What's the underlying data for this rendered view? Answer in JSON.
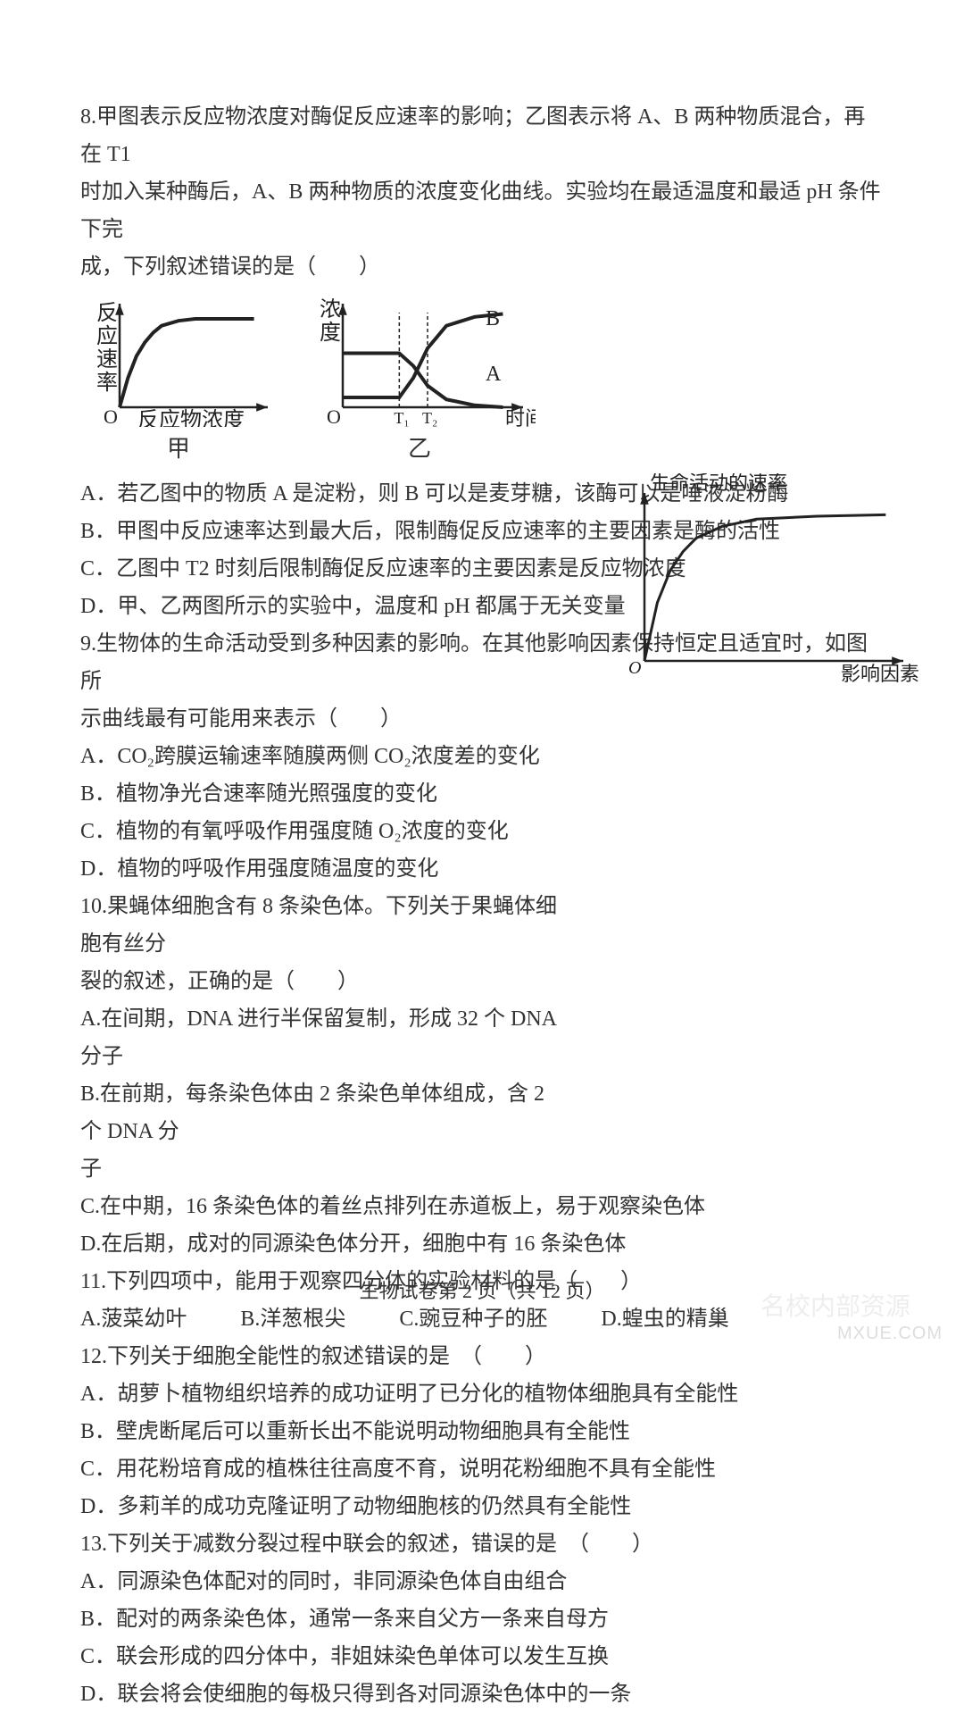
{
  "q8": {
    "stem_l1": "8.甲图表示反应物浓度对酶促反应速率的影响；乙图表示将 A、B 两种物质混合，再在 T1",
    "stem_l2": "时加入某种酶后，A、B 两种物质的浓度变化曲线。实验均在最适温度和最适 pH 条件下完",
    "stem_l3": "成，下列叙述错误的是（　　）",
    "optA": "A．若乙图中的物质 A 是淀粉，则 B 可以是麦芽糖，该酶可以是唾液淀粉酶",
    "optB": "B．甲图中反应速率达到最大后，限制酶促反应速率的主要因素是酶的活性",
    "optC": "C．乙图中 T2 时刻后限制酶促反应速率的主要因素是反应物浓度",
    "optD": "D．甲、乙两图所示的实验中，温度和 pH 都属于无关变量",
    "fig1": {
      "type": "line",
      "ylabel": "反应速率",
      "xlabel": "反应物浓度",
      "caption": "甲",
      "origin_label": "O",
      "stroke_color": "#222222",
      "stroke_width": 4,
      "bg": "#ffffff",
      "curve": {
        "x": [
          0,
          10,
          20,
          30,
          40,
          50,
          70,
          90,
          120,
          160
        ],
        "y": [
          0,
          30,
          52,
          66,
          76,
          83,
          88,
          90,
          90,
          90
        ],
        "ylim": [
          0,
          100
        ],
        "xlim": [
          0,
          170
        ]
      }
    },
    "fig2": {
      "type": "line",
      "ylabel": "浓度",
      "xlabel": "时间",
      "caption": "乙",
      "origin_label": "O",
      "stroke_color": "#222222",
      "stroke_width": 4,
      "bg": "#ffffff",
      "tick_T1": "T₁",
      "tick_T2": "T₂",
      "label_A": "A",
      "label_B": "B",
      "seriesA": {
        "x": [
          0,
          50,
          60,
          75,
          90,
          110,
          140,
          170
        ],
        "y": [
          55,
          55,
          55,
          42,
          22,
          8,
          2,
          0
        ],
        "xlim": [
          0,
          180
        ],
        "ylim": [
          0,
          100
        ]
      },
      "seriesB": {
        "x": [
          0,
          50,
          60,
          75,
          90,
          110,
          140,
          170
        ],
        "y": [
          10,
          10,
          10,
          30,
          60,
          83,
          92,
          95
        ],
        "xlim": [
          0,
          180
        ],
        "ylim": [
          0,
          100
        ]
      },
      "vline1_x": 60,
      "vline2_x": 90
    }
  },
  "q9": {
    "stem_l1": "9.生物体的生命活动受到多种因素的影响。在其他影响因素保持恒定且适宜时，如图所",
    "stem_l2": "示曲线最有可能用来表示（　　）",
    "optA": "A．CO₂跨膜运输速率随膜两侧 CO₂浓度差的变化",
    "optB": "B．植物净光合速率随光照强度的变化",
    "optC": "C．植物的有氧呼吸作用强度随 O₂浓度的变化",
    "optD": "D．植物的呼吸作用强度随温度的变化",
    "fig": {
      "type": "line",
      "ylabel": "生命活动的速率",
      "xlabel": "影响因素",
      "origin_label": "O",
      "stroke_color": "#222222",
      "stroke_width": 3,
      "curve": {
        "x": [
          0,
          15,
          30,
          45,
          60,
          90,
          130,
          200,
          280
        ],
        "y": [
          0,
          40,
          62,
          75,
          84,
          92,
          97,
          99,
          100
        ],
        "xlim": [
          0,
          290
        ],
        "ylim": [
          0,
          110
        ]
      }
    }
  },
  "q10": {
    "stem_l1": "10.果蝇体细胞含有 8 条染色体。下列关于果蝇体细胞有丝分",
    "stem_l2": "裂的叙述，正确的是（　　）",
    "optA": "A.在间期，DNA 进行半保留复制，形成 32 个 DNA 分子",
    "optB_l1": "B.在前期，每条染色体由 2 条染色单体组成，含 2 个 DNA 分",
    "optB_l2": "子",
    "optC": "C.在中期，16 条染色体的着丝点排列在赤道板上，易于观察染色体",
    "optD": "D.在后期，成对的同源染色体分开，细胞中有 16 条染色体"
  },
  "q11": {
    "stem": "11.下列四项中，能用于观察四分体的实验材料的是（　　）",
    "optA": "A.菠菜幼叶",
    "optB": "B.洋葱根尖",
    "optC": "C.豌豆种子的胚",
    "optD": "D.蝗虫的精巢"
  },
  "q12": {
    "stem": "12.下列关于细胞全能性的叙述错误的是　（　　）",
    "optA": "A．胡萝卜植物组织培养的成功证明了已分化的植物体细胞具有全能性",
    "optB": "B．壁虎断尾后可以重新长出不能说明动物细胞具有全能性",
    "optC": "C．用花粉培育成的植株往往高度不育，说明花粉细胞不具有全能性",
    "optD": "D．多莉羊的成功克隆证明了动物细胞核的仍然具有全能性"
  },
  "q13": {
    "stem": "13.下列关于减数分裂过程中联会的叙述，错误的是　（　　）",
    "optA": "A．同源染色体配对的同时，非同源染色体自由组合",
    "optB": "B．配对的两条染色体，通常一条来自父方一条来自母方",
    "optC": "C．联会形成的四分体中，非姐妹染色单体可以发生互换",
    "optD": "D．联会将会使细胞的每极只得到各对同源染色体中的一条"
  },
  "footer": "生物试卷第 2 页（共 12 页）",
  "watermark_main": "MXUE.COM",
  "watermark_cn": "名校内部资源"
}
